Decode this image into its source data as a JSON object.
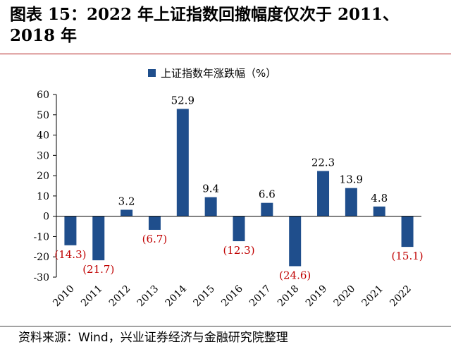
{
  "figure": {
    "title": "图表 15：2022 年上证指数回撤幅度仅次于 2011、2018 年",
    "source": "资料来源：Wind，兴业证券经济与金融研究院整理"
  },
  "chart_data": {
    "type": "bar",
    "categories": [
      "2010",
      "2011",
      "2012",
      "2013",
      "2014",
      "2015",
      "2016",
      "2017",
      "2018",
      "2019",
      "2020",
      "2021",
      "2022"
    ],
    "series": [
      {
        "name": "上证指数年涨跌幅（%）",
        "values": [
          -14.3,
          -21.7,
          3.2,
          -6.7,
          52.9,
          9.4,
          -12.3,
          6.6,
          -24.6,
          22.3,
          13.9,
          4.8,
          -15.1
        ]
      }
    ],
    "data_labels": [
      "(14.3)",
      "(21.7)",
      "3.2",
      "(6.7)",
      "52.9",
      "9.4",
      "(12.3)",
      "6.6",
      "(24.6)",
      "22.3",
      "13.9",
      "4.8",
      "(15.1)"
    ],
    "y_ticks": [
      "60",
      "50",
      "40",
      "30",
      "20",
      "10",
      "0",
      "-10",
      "-20",
      "-30"
    ],
    "ylim": [
      -30,
      60
    ],
    "legend_position": "top-center",
    "grid": false,
    "colors": {
      "bar": "#1f4e8c",
      "negative_label": "#c00000",
      "positive_label": "#000000"
    }
  }
}
